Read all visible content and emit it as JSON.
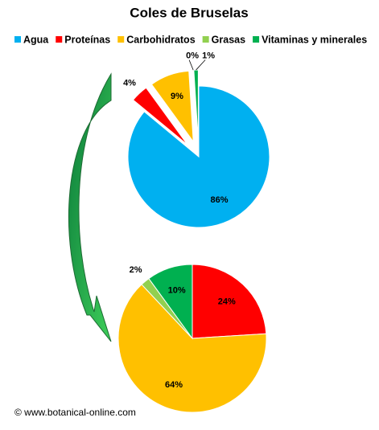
{
  "chart_data": [
    {
      "type": "pie",
      "title": "Coles de Bruselas",
      "categories": [
        "Agua",
        "Proteínas",
        "Carbohidratos",
        "Grasas",
        "Vitaminas y minerales"
      ],
      "values": [
        86,
        4,
        9,
        0,
        1
      ],
      "value_labels": [
        "86%",
        "4%",
        "9%",
        "0%",
        "1%"
      ],
      "colors": [
        "#00b0f0",
        "#ff0000",
        "#ffc000",
        "#92d050",
        "#00b050"
      ],
      "exploded": true,
      "legend": "top"
    },
    {
      "type": "pie",
      "values": [
        24,
        64,
        2,
        10
      ],
      "value_labels": [
        "24%",
        "64%",
        "2%",
        "10%"
      ],
      "colors": [
        "#ff0000",
        "#ffc000",
        "#92d050",
        "#00b050"
      ]
    }
  ],
  "footer": "© www.botanical-online.com"
}
